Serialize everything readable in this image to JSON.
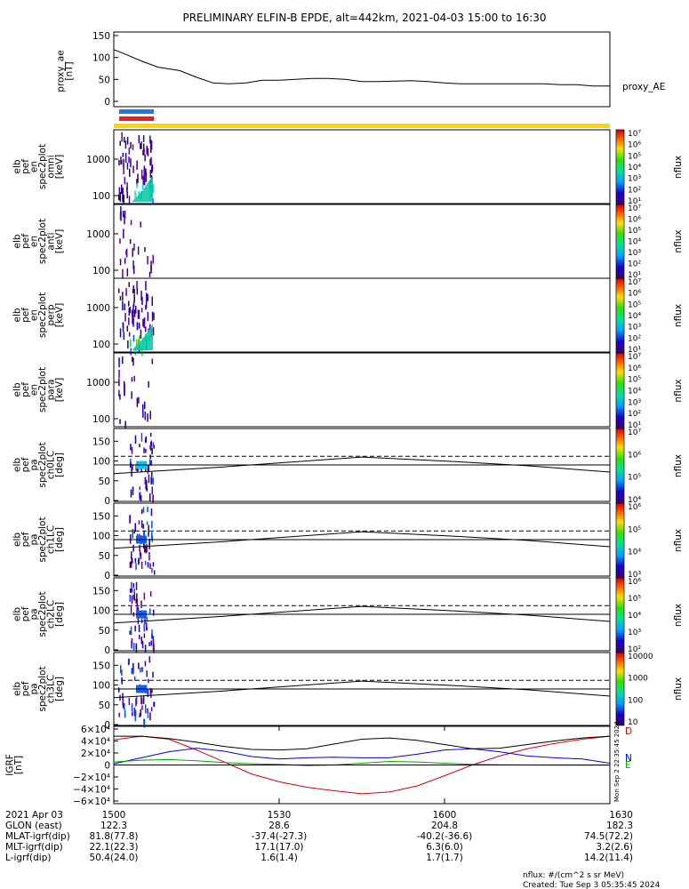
{
  "title": "PRELIMINARY ELFIN-B EPDE, alt=442km, 2021-04-03 15:00 to 16:30",
  "colors": {
    "blue_bar": "#1e78e6",
    "red_bar": "#e61e1e",
    "yellow_bar": "#ffd700"
  },
  "ae_panel": {
    "ylabel_lines": [
      "proxy_ae",
      "[nT]"
    ],
    "yticks": [
      "150",
      "100",
      "50",
      "0"
    ],
    "ylim": [
      0,
      150
    ],
    "legend": "proxy_AE"
  },
  "spec_panels": [
    {
      "ylabel_lines": [
        "elb",
        "pef",
        "en",
        "spec2plot",
        "omni",
        "[keV]"
      ],
      "yticks": [
        "1000",
        "100"
      ]
    },
    {
      "ylabel_lines": [
        "elb",
        "pef",
        "en",
        "spec2plot",
        "anti",
        "[keV]"
      ],
      "yticks": [
        "1000",
        "100"
      ]
    },
    {
      "ylabel_lines": [
        "elb",
        "pef",
        "en",
        "spec2plot",
        "perp",
        "[keV]"
      ],
      "yticks": [
        "1000",
        "100"
      ]
    },
    {
      "ylabel_lines": [
        "elb",
        "pef",
        "en",
        "spec2plot",
        "para",
        "[keV]"
      ],
      "yticks": [
        "1000",
        "100"
      ]
    }
  ],
  "pa_panels": [
    {
      "ylabel_lines": [
        "elb",
        "pef",
        "pa",
        "spec2plot",
        "ch0LC",
        "[deg]"
      ],
      "yticks": [
        "150",
        "100",
        "50",
        "0"
      ]
    },
    {
      "ylabel_lines": [
        "elb",
        "pef",
        "pa",
        "spec2plot",
        "ch1LC",
        "[deg]"
      ],
      "yticks": [
        "150",
        "100",
        "50",
        "0"
      ]
    },
    {
      "ylabel_lines": [
        "elb",
        "pef",
        "pa",
        "spec2plot",
        "ch2LC",
        "[deg]"
      ],
      "yticks": [
        "150",
        "100",
        "50",
        "0"
      ]
    },
    {
      "ylabel_lines": [
        "elb",
        "pef",
        "pa",
        "spec2plot",
        "ch3LC",
        "[deg]"
      ],
      "yticks": [
        "150",
        "100",
        "50",
        "0"
      ]
    }
  ],
  "colorbars": [
    {
      "label": "nflux",
      "ticks": [
        "10⁷",
        "10⁶",
        "10⁵",
        "10⁴",
        "10³",
        "10²",
        "10¹"
      ]
    },
    {
      "label": "nflux",
      "ticks": [
        "10⁷",
        "10⁶",
        "10⁵",
        "10⁴",
        "10³",
        "10²",
        "10¹"
      ]
    },
    {
      "label": "nflux",
      "ticks": [
        "10⁷",
        "10⁶",
        "10⁵",
        "10⁴",
        "10³",
        "10²",
        "10¹"
      ]
    },
    {
      "label": "nflux",
      "ticks": [
        "10⁷",
        "10⁶",
        "10⁵",
        "10⁴",
        "10³",
        "10²",
        "10¹"
      ]
    },
    {
      "label": "nflux",
      "ticks": [
        "10⁷",
        "10⁶",
        "10⁵",
        "10⁴"
      ]
    },
    {
      "label": "nflux",
      "ticks": [
        "10⁶",
        "10⁵",
        "10⁴",
        "10³"
      ]
    },
    {
      "label": "nflux",
      "ticks": [
        "10⁶",
        "10⁵",
        "10⁴",
        "10³",
        "10²"
      ]
    },
    {
      "label": "nflux",
      "ticks": [
        "10000",
        "1000",
        "100",
        "10"
      ]
    }
  ],
  "igrf_panel": {
    "ylabel_lines": [
      "IGRF",
      "[nT]"
    ],
    "yticks": [
      "6×10⁴",
      "4×10⁴",
      "2×10⁴",
      "0",
      "−2×10⁴",
      "−4×10⁴",
      "−6×10⁴"
    ],
    "ylim": [
      -60000,
      60000
    ],
    "legend": [
      "D",
      "N",
      "E"
    ],
    "legend_colors": [
      "#e00000",
      "#0000dd",
      "#00aa00"
    ],
    "side_note": "Mon Sep  2 22:35:45 2024"
  },
  "chart_data": {
    "type": "line",
    "x_unit": "UT (HHMM)",
    "xlim": [
      "1500",
      "1630"
    ],
    "x_ticks": [
      "1500",
      "1530",
      "1600",
      "1630"
    ],
    "series": [
      {
        "name": "proxy_AE",
        "x_minutes": [
          0,
          2,
          5,
          8,
          12,
          15,
          18,
          21,
          24,
          27,
          30,
          33,
          36,
          39,
          42,
          45,
          48,
          51,
          54,
          57,
          60,
          63,
          66,
          69,
          72,
          75,
          78,
          81,
          84,
          87,
          90
        ],
        "values": [
          118,
          108,
          92,
          78,
          70,
          55,
          42,
          40,
          42,
          48,
          48,
          50,
          52,
          52,
          50,
          45,
          45,
          46,
          47,
          45,
          42,
          40,
          40,
          40,
          40,
          40,
          40,
          38,
          38,
          35,
          35
        ]
      }
    ],
    "igrf_series": [
      {
        "name": "D",
        "x_minutes": [
          0,
          5,
          10,
          15,
          20,
          25,
          30,
          35,
          40,
          45,
          50,
          55,
          60,
          65,
          70,
          75,
          80,
          85,
          90
        ],
        "values": [
          42000,
          48000,
          43000,
          25000,
          5000,
          -15000,
          -28000,
          -37000,
          -43000,
          -48000,
          -45000,
          -35000,
          -18000,
          0,
          15000,
          27000,
          36000,
          43000,
          48000
        ]
      },
      {
        "name": "N",
        "x_minutes": [
          0,
          5,
          10,
          15,
          20,
          25,
          30,
          35,
          40,
          45,
          50,
          55,
          60,
          65,
          70,
          75,
          80,
          85,
          90
        ],
        "values": [
          2000,
          12000,
          22000,
          28000,
          23000,
          14000,
          10000,
          12000,
          13000,
          12000,
          12000,
          18000,
          25000,
          27000,
          22000,
          15000,
          12000,
          10000,
          3000
        ]
      },
      {
        "name": "E",
        "x_minutes": [
          0,
          5,
          10,
          15,
          20,
          25,
          30,
          35,
          40,
          45,
          50,
          55,
          60,
          65,
          70,
          75,
          80,
          85,
          90
        ],
        "values": [
          5000,
          8000,
          9000,
          7000,
          4000,
          2000,
          1000,
          -1000,
          0,
          3000,
          6000,
          5000,
          3000,
          1000,
          500,
          0,
          -500,
          -500,
          -500
        ]
      },
      {
        "name": "total",
        "x_minutes": [
          0,
          5,
          10,
          15,
          20,
          25,
          30,
          35,
          40,
          45,
          50,
          55,
          60,
          65,
          70,
          75,
          80,
          85,
          90
        ],
        "values": [
          48000,
          48000,
          44000,
          38000,
          31000,
          26000,
          25000,
          27000,
          35000,
          43000,
          45000,
          41000,
          34000,
          27000,
          28000,
          34000,
          40000,
          45000,
          48000
        ]
      }
    ],
    "pa_lines": {
      "loss_cone": {
        "x_minutes": [
          0,
          20,
          45,
          60,
          75,
          90
        ],
        "values": [
          68,
          85,
          110,
          100,
          88,
          72
        ]
      },
      "antiloss_cone_dashed": 112,
      "horizontal_solid": 90
    }
  },
  "footer": {
    "rows": [
      [
        "2021 Apr 03",
        "1500",
        "1530",
        "1600",
        "1630"
      ],
      [
        "GLON (east)",
        "122.3",
        "28.6",
        "204.8",
        "182.3"
      ],
      [
        "MLAT-igrf(dip)",
        "81.8(77.8)",
        "-37.4(-27.3)",
        "-40.2(-36.6)",
        "74.5(72.2)"
      ],
      [
        "MLT-igrf(dip)",
        "22.1(22.3)",
        "17.1(17.0)",
        "6.3(6.0)",
        "3.2(2.6)"
      ],
      [
        "L-igrf(dip)",
        "50.4(24.0)",
        "1.6(1.4)",
        "1.7(1.7)",
        "14.2(11.4)"
      ]
    ],
    "units_note": "nflux: #/(cm^2 s sr MeV)",
    "created": "Created: Tue Sep  3 05:35:45 2024"
  }
}
